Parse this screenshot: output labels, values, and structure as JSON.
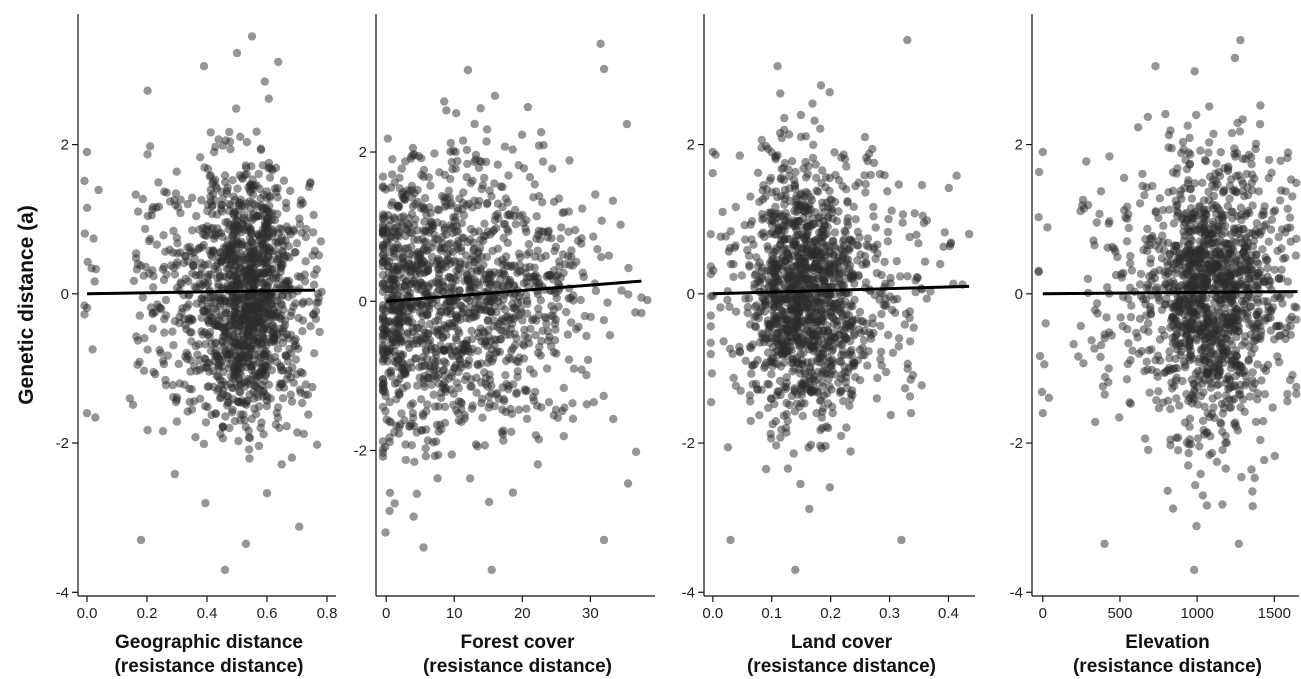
{
  "ylabel": "Genetic distance (a)",
  "chart_data": [
    {
      "type": "scatter",
      "xlabel_line1": "Geographic distance",
      "xlabel_line2": "(resistance distance)",
      "ylabel": "Genetic distance (a)",
      "xlim": [
        -0.03,
        0.83
      ],
      "ylim": [
        -4.05,
        3.75
      ],
      "xticks": [
        0.0,
        0.2,
        0.4,
        0.6,
        0.8
      ],
      "xtick_labels": [
        "0.0",
        "0.2",
        "0.4",
        "0.6",
        "0.8"
      ],
      "yticks": [
        -4,
        -2,
        0,
        2
      ],
      "ytick_labels": [
        "-4",
        "-2",
        "0",
        "2"
      ],
      "trend": {
        "x": [
          0.0,
          0.76
        ],
        "y": [
          0.0,
          0.05
        ]
      },
      "x_distribution": {
        "centers": [
          0.0,
          0.16,
          0.2,
          0.25,
          0.3,
          0.35,
          0.4,
          0.45,
          0.5,
          0.55,
          0.6,
          0.65,
          0.7,
          0.75
        ],
        "weights": [
          10,
          12,
          22,
          28,
          35,
          45,
          80,
          170,
          230,
          260,
          200,
          90,
          45,
          25
        ],
        "spread": 0.018
      },
      "y_spread": 0.9,
      "n_points": 1400,
      "seed": 11,
      "highlight_points": [
        {
          "x": 0.55,
          "y": 3.45
        },
        {
          "x": 0.46,
          "y": -3.7
        },
        {
          "x": 0.53,
          "y": -3.35
        },
        {
          "x": 0.18,
          "y": -3.3
        },
        {
          "x": 0.39,
          "y": 3.05
        },
        {
          "x": 0.0,
          "y": 1.9
        },
        {
          "x": 0.0,
          "y": -1.6
        }
      ]
    },
    {
      "type": "scatter",
      "xlabel_line1": "Forest cover",
      "xlabel_line2": "(resistance distance)",
      "ylabel": "",
      "xlim": [
        -1.5,
        39.5
      ],
      "ylim": [
        -3.95,
        3.85
      ],
      "xticks": [
        0,
        10,
        20,
        30
      ],
      "xtick_labels": [
        "0",
        "10",
        "20",
        "30"
      ],
      "yticks": [
        -2,
        0,
        2
      ],
      "ytick_labels": [
        "-2",
        "0",
        "2"
      ],
      "trend": {
        "x": [
          0.0,
          37.5
        ],
        "y": [
          0.0,
          0.27
        ]
      },
      "x_distribution": {
        "centers": [
          0.5,
          3,
          6,
          9,
          12,
          15,
          18,
          21,
          24,
          27,
          30,
          34,
          37
        ],
        "weights": [
          180,
          170,
          160,
          150,
          140,
          120,
          100,
          75,
          50,
          30,
          18,
          10,
          6
        ],
        "spread": 1.6
      },
      "y_spread": 0.95,
      "n_points": 1400,
      "seed": 23,
      "highlight_points": [
        {
          "x": 31.5,
          "y": 3.45
        },
        {
          "x": 12.0,
          "y": 3.1
        },
        {
          "x": 15.5,
          "y": -3.6
        },
        {
          "x": 5.5,
          "y": -3.3
        },
        {
          "x": 32.0,
          "y": -3.2
        },
        {
          "x": 37.5,
          "y": 0.05
        }
      ]
    },
    {
      "type": "scatter",
      "xlabel_line1": "Land cover",
      "xlabel_line2": "(resistance distance)",
      "ylabel": "",
      "xlim": [
        -0.015,
        0.445
      ],
      "ylim": [
        -4.05,
        3.75
      ],
      "xticks": [
        0.0,
        0.1,
        0.2,
        0.3,
        0.4
      ],
      "xtick_labels": [
        "0.0",
        "0.1",
        "0.2",
        "0.3",
        "0.4"
      ],
      "yticks": [
        -4,
        -2,
        0,
        2
      ],
      "ytick_labels": [
        "-4",
        "-2",
        "0",
        "2"
      ],
      "trend": {
        "x": [
          0.0,
          0.435
        ],
        "y": [
          0.0,
          0.1
        ]
      },
      "x_distribution": {
        "centers": [
          0.0,
          0.04,
          0.08,
          0.11,
          0.14,
          0.17,
          0.2,
          0.23,
          0.27,
          0.31,
          0.35,
          0.4
        ],
        "weights": [
          15,
          35,
          90,
          230,
          280,
          260,
          190,
          120,
          60,
          35,
          18,
          8
        ],
        "spread": 0.014
      },
      "y_spread": 0.9,
      "n_points": 1400,
      "seed": 37,
      "highlight_points": [
        {
          "x": 0.33,
          "y": 3.4
        },
        {
          "x": 0.11,
          "y": 3.05
        },
        {
          "x": 0.14,
          "y": -3.7
        },
        {
          "x": 0.03,
          "y": -3.3
        },
        {
          "x": 0.32,
          "y": -3.3
        },
        {
          "x": 0.435,
          "y": 0.8
        },
        {
          "x": 0.0,
          "y": 1.9
        }
      ]
    },
    {
      "type": "scatter",
      "xlabel_line1": "Elevation",
      "xlabel_line2": "(resistance distance)",
      "ylabel": "",
      "xlim": [
        -70,
        1660
      ],
      "ylim": [
        -4.05,
        3.75
      ],
      "xticks": [
        0,
        500,
        1000,
        1500
      ],
      "xtick_labels": [
        "0",
        "500",
        "1000",
        "1500"
      ],
      "yticks": [
        -4,
        -2,
        0,
        2
      ],
      "ytick_labels": [
        "-4",
        "-2",
        "0",
        "2"
      ],
      "trend": {
        "x": [
          0,
          1650
        ],
        "y": [
          0.0,
          0.03
        ]
      },
      "x_distribution": {
        "centers": [
          0,
          280,
          400,
          550,
          700,
          850,
          950,
          1050,
          1150,
          1250,
          1350,
          1450,
          1550,
          1640
        ],
        "weights": [
          10,
          18,
          25,
          40,
          75,
          150,
          210,
          240,
          230,
          190,
          130,
          80,
          45,
          20
        ],
        "spread": 45
      },
      "y_spread": 0.92,
      "n_points": 1400,
      "seed": 53,
      "highlight_points": [
        {
          "x": 1280,
          "y": 3.4
        },
        {
          "x": 730,
          "y": 3.05
        },
        {
          "x": 980,
          "y": -3.7
        },
        {
          "x": 1270,
          "y": -3.35
        },
        {
          "x": 400,
          "y": -3.35
        },
        {
          "x": 0,
          "y": 1.9
        },
        {
          "x": 0,
          "y": -1.6
        }
      ]
    }
  ]
}
